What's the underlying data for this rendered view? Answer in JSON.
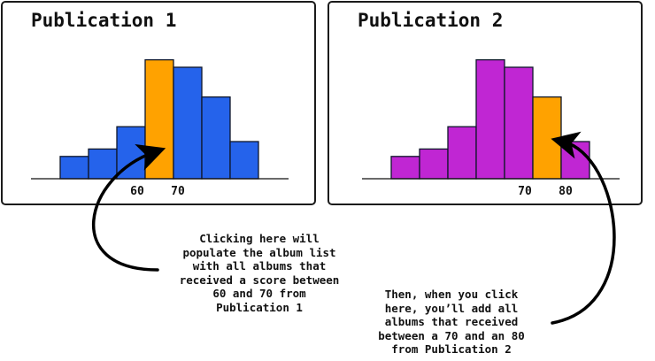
{
  "colors": {
    "panel1_bar": "#2563eb",
    "panel2_bar": "#c026d3",
    "highlight": "#ffa200",
    "bar_stroke": "#0f172a",
    "axis": "#111111",
    "arrow": "#000000"
  },
  "chart_data": [
    {
      "type": "bar",
      "title": "Publication 1",
      "values": [
        3,
        4,
        7,
        16,
        15,
        11,
        5
      ],
      "highlight_index": 3,
      "tick_labels": [
        "60",
        "70"
      ],
      "tick_after_bar": [
        2,
        3
      ],
      "xlabel": "",
      "ylabel": "",
      "grid": false
    },
    {
      "type": "bar",
      "title": "Publication 2",
      "values": [
        3,
        4,
        7,
        16,
        15,
        11,
        5
      ],
      "highlight_index": 5,
      "tick_labels": [
        "70",
        "80"
      ],
      "tick_after_bar": [
        4,
        5
      ],
      "xlabel": "",
      "ylabel": "",
      "grid": false
    }
  ],
  "captions": {
    "first": [
      "Clicking here will",
      "populate the album list",
      "with all albums that",
      "received a score between",
      "60 and 70 from",
      "Publication 1"
    ],
    "second": [
      "Then, when you click",
      "here, you’ll add all",
      "albums that received",
      "between a 70 and an 80",
      "from Publication 2"
    ]
  }
}
